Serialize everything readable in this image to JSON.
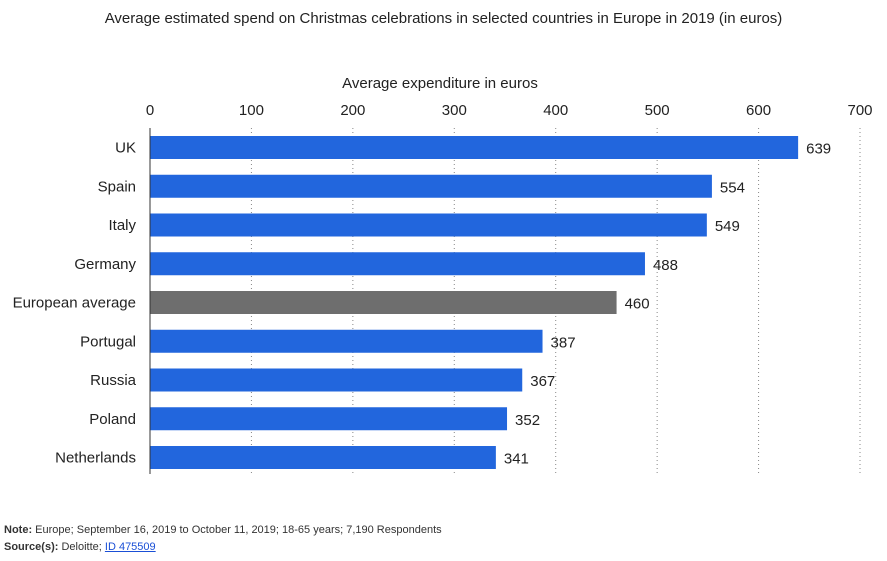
{
  "chart_data": {
    "type": "bar",
    "orientation": "horizontal",
    "title": "Average estimated spend on Christmas celebrations in selected countries in Europe in 2019 (in euros)",
    "xlabel": "Average expenditure in euros",
    "xlim": [
      0,
      700
    ],
    "xticks": [
      0,
      100,
      200,
      300,
      400,
      500,
      600,
      700
    ],
    "categories": [
      "UK",
      "Spain",
      "Italy",
      "Germany",
      "European average",
      "Portugal",
      "Russia",
      "Poland",
      "Netherlands"
    ],
    "values": [
      639,
      554,
      549,
      488,
      460,
      387,
      367,
      352,
      341
    ],
    "data_labels": [
      "639",
      "554",
      "549",
      "488",
      "460",
      "387",
      "367",
      "352",
      "341"
    ],
    "colors": {
      "bar": "#2266dd",
      "highlight": "#6e6e6e",
      "gridline": "#888888",
      "axis": "#333333",
      "text": "#222222"
    },
    "highlight_category": "European average",
    "grid": "vertical-dotted",
    "axis_position": "top"
  },
  "footer": {
    "note_label": "Note:",
    "note_text": "Europe; September 16, 2019 to October 11, 2019; 18-65 years; 7,190 Respondents",
    "source_label": "Source(s):",
    "source_text": "Deloitte;",
    "source_link": "ID 475509"
  }
}
